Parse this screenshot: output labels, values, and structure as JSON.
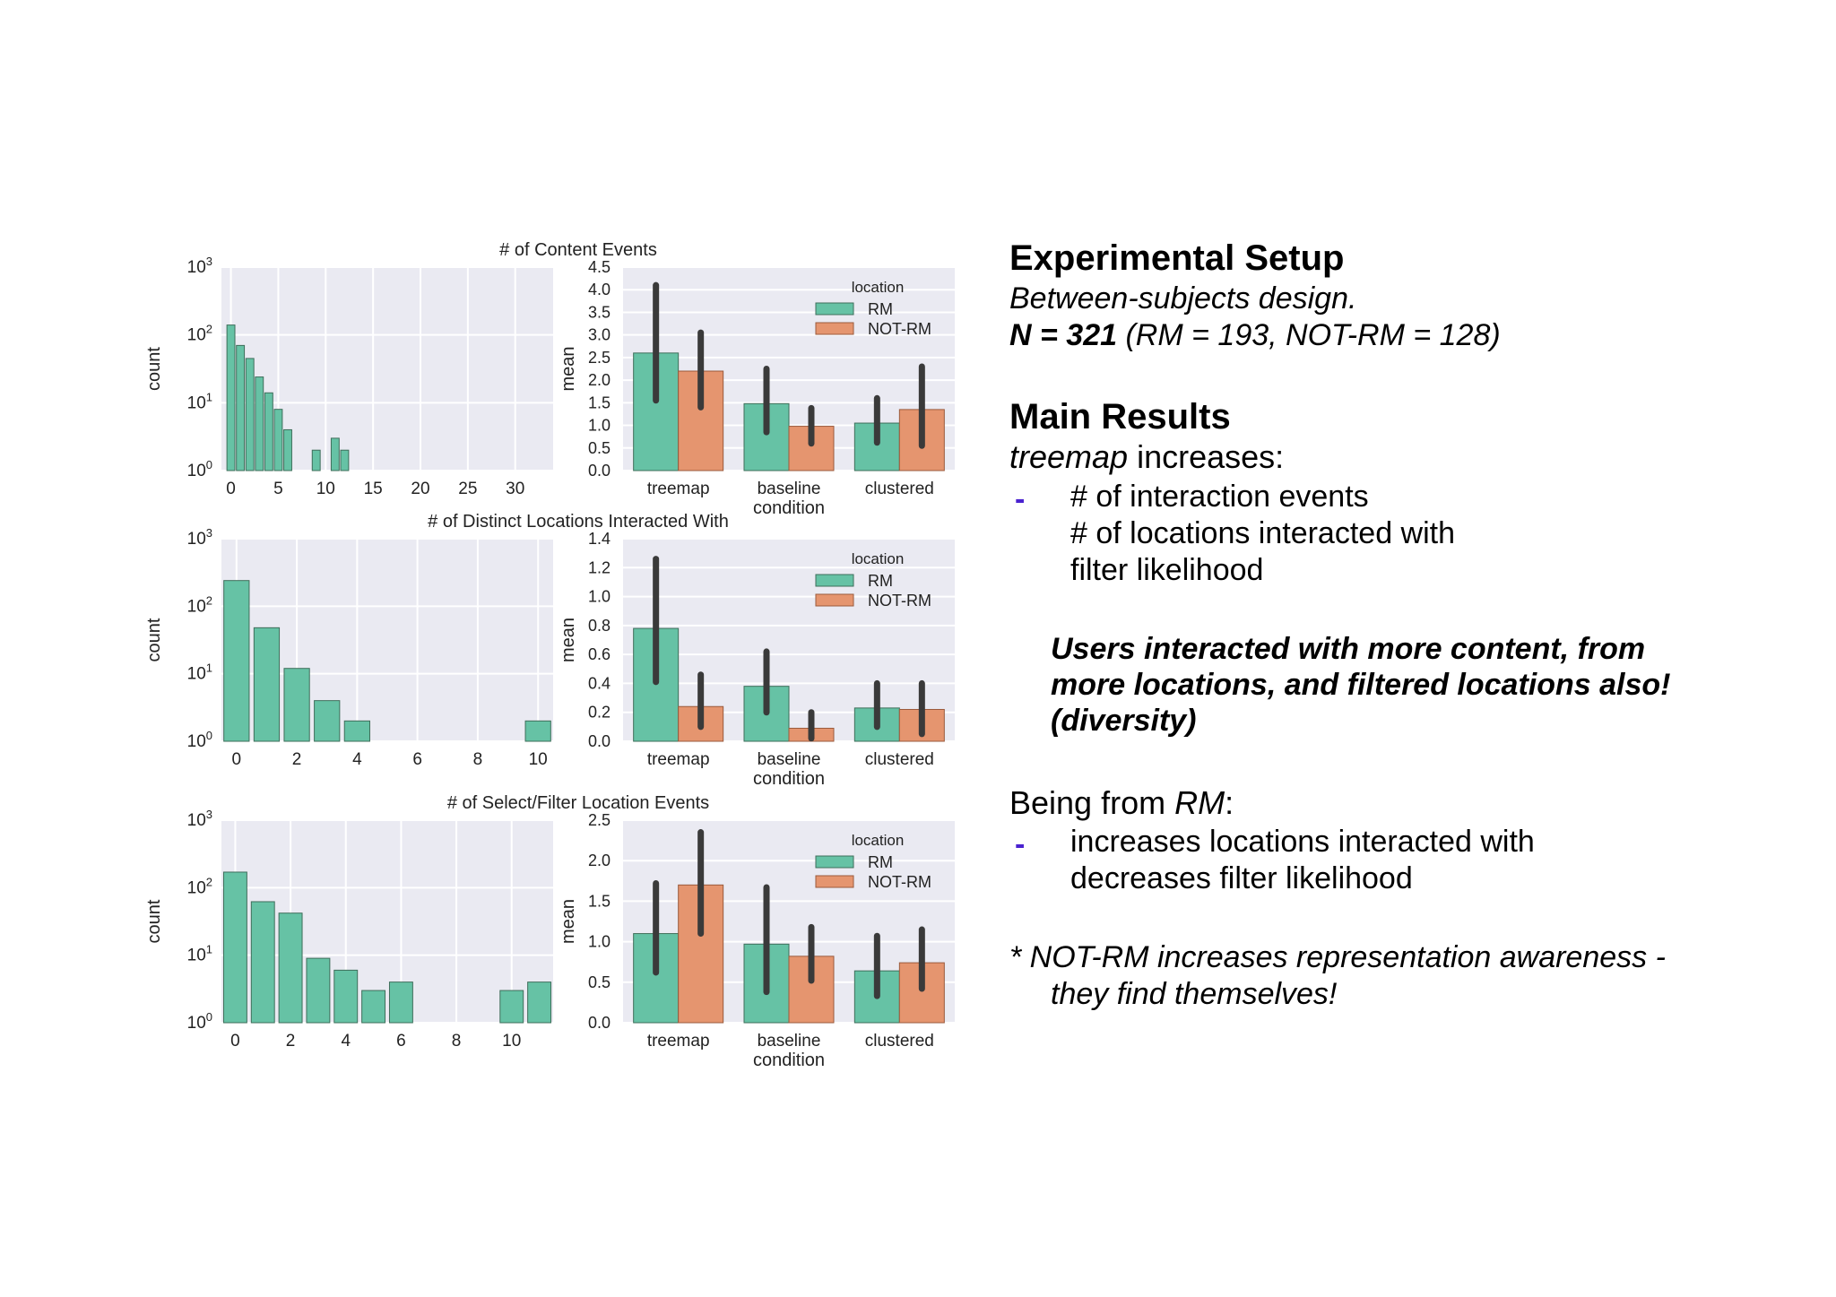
{
  "slide": {
    "setup": {
      "heading": "Experimental Setup",
      "design": "Between-subjects design.",
      "n_label": "N = 321",
      "n_detail": "(RM = 193, NOT-RM = 128)"
    },
    "results": {
      "heading": "Main Results",
      "treemap_word": "treemap",
      "treemap_rest": " increases:",
      "dash": "-",
      "treemap_items": [
        "# of interaction events",
        "# of locations interacted with",
        "filter likelihood"
      ],
      "highlight_lines": [
        "Users interacted with more content, from",
        "more locations, and filtered locations also!",
        "(diversity)"
      ],
      "rm_prefix": "Being from ",
      "rm_word": "RM",
      "rm_suffix": ":",
      "rm_items": [
        "increases locations interacted with",
        "decreases filter likelihood"
      ],
      "note_lines": [
        "* NOT-RM increases representation awareness -",
        "they find themselves!"
      ]
    }
  },
  "colors": {
    "rm": "#66c2a5",
    "notrm": "#e5956f",
    "panel": "#eaeaf2",
    "grid": "#ffffff",
    "errbar": "#3a3a3a"
  },
  "chart_data": [
    {
      "type": "bar",
      "panel": "histogram",
      "title": "# of Content Events",
      "ylabel": "count",
      "yscale": "log",
      "ylim": [
        1,
        1000
      ],
      "xlim": [
        -1,
        34
      ],
      "xticks": [
        0,
        5,
        10,
        15,
        20,
        25,
        30
      ],
      "bars": [
        {
          "x": 0,
          "y": 140
        },
        {
          "x": 1,
          "y": 70
        },
        {
          "x": 2,
          "y": 45
        },
        {
          "x": 3,
          "y": 24
        },
        {
          "x": 4,
          "y": 14
        },
        {
          "x": 5,
          "y": 8
        },
        {
          "x": 6,
          "y": 4
        },
        {
          "x": 9,
          "y": 2
        },
        {
          "x": 11,
          "y": 3
        },
        {
          "x": 12,
          "y": 2
        }
      ]
    },
    {
      "type": "bar",
      "panel": "means",
      "title": "",
      "ylabel": "mean",
      "xlabel": "condition",
      "ylim": [
        0,
        4.5
      ],
      "yticks": [
        "0.0",
        "0.5",
        "1.0",
        "1.5",
        "2.0",
        "2.5",
        "3.0",
        "3.5",
        "4.0",
        "4.5"
      ],
      "categories": [
        "treemap",
        "baseline",
        "clustered"
      ],
      "legend_title": "location",
      "legend_position": "top-right",
      "series": [
        {
          "name": "RM",
          "values": [
            2.6,
            1.48,
            1.05
          ],
          "err_low": [
            1.55,
            0.85,
            0.62
          ],
          "err_high": [
            4.1,
            2.25,
            1.6
          ]
        },
        {
          "name": "NOT-RM",
          "values": [
            2.2,
            0.98,
            1.35
          ],
          "err_low": [
            1.4,
            0.6,
            0.55
          ],
          "err_high": [
            3.05,
            1.38,
            2.3
          ]
        }
      ]
    },
    {
      "type": "bar",
      "panel": "histogram",
      "title": "# of Distinct Locations Interacted With",
      "ylabel": "count",
      "yscale": "log",
      "ylim": [
        1,
        1000
      ],
      "xlim": [
        -0.5,
        10.5
      ],
      "xticks": [
        0,
        2,
        4,
        6,
        8,
        10
      ],
      "bars": [
        {
          "x": 0,
          "y": 240
        },
        {
          "x": 1,
          "y": 48
        },
        {
          "x": 2,
          "y": 12
        },
        {
          "x": 3,
          "y": 4
        },
        {
          "x": 4,
          "y": 2
        },
        {
          "x": 10,
          "y": 2
        }
      ]
    },
    {
      "type": "bar",
      "panel": "means",
      "title": "",
      "ylabel": "mean",
      "xlabel": "condition",
      "ylim": [
        0,
        1.4
      ],
      "yticks": [
        "0.0",
        "0.2",
        "0.4",
        "0.6",
        "0.8",
        "1.0",
        "1.2",
        "1.4"
      ],
      "categories": [
        "treemap",
        "baseline",
        "clustered"
      ],
      "legend_title": "location",
      "legend_position": "top-right",
      "series": [
        {
          "name": "RM",
          "values": [
            0.78,
            0.38,
            0.23
          ],
          "err_low": [
            0.41,
            0.2,
            0.1
          ],
          "err_high": [
            1.26,
            0.62,
            0.4
          ]
        },
        {
          "name": "NOT-RM",
          "values": [
            0.24,
            0.09,
            0.22
          ],
          "err_low": [
            0.1,
            0.02,
            0.05
          ],
          "err_high": [
            0.46,
            0.2,
            0.4
          ]
        }
      ]
    },
    {
      "type": "bar",
      "panel": "histogram",
      "title": "# of Select/Filter Location Events",
      "ylabel": "count",
      "yscale": "log",
      "ylim": [
        1,
        1000
      ],
      "xlim": [
        -0.5,
        11.5
      ],
      "xticks": [
        0,
        2,
        4,
        6,
        8,
        10
      ],
      "bars": [
        {
          "x": 0,
          "y": 170
        },
        {
          "x": 1,
          "y": 62
        },
        {
          "x": 2,
          "y": 42
        },
        {
          "x": 3,
          "y": 9
        },
        {
          "x": 4,
          "y": 6
        },
        {
          "x": 5,
          "y": 3
        },
        {
          "x": 6,
          "y": 4
        },
        {
          "x": 10,
          "y": 3
        },
        {
          "x": 11,
          "y": 4
        }
      ]
    },
    {
      "type": "bar",
      "panel": "means",
      "title": "",
      "ylabel": "mean",
      "xlabel": "condition",
      "ylim": [
        0,
        2.5
      ],
      "yticks": [
        "0.0",
        "0.5",
        "1.0",
        "1.5",
        "2.0",
        "2.5"
      ],
      "categories": [
        "treemap",
        "baseline",
        "clustered"
      ],
      "legend_title": "location",
      "legend_position": "top-right",
      "series": [
        {
          "name": "RM",
          "values": [
            1.1,
            0.97,
            0.64
          ],
          "err_low": [
            0.62,
            0.38,
            0.33
          ],
          "err_high": [
            1.72,
            1.67,
            1.07
          ]
        },
        {
          "name": "NOT-RM",
          "values": [
            1.7,
            0.82,
            0.74
          ],
          "err_low": [
            1.1,
            0.52,
            0.42
          ],
          "err_high": [
            2.35,
            1.18,
            1.15
          ]
        }
      ]
    }
  ]
}
